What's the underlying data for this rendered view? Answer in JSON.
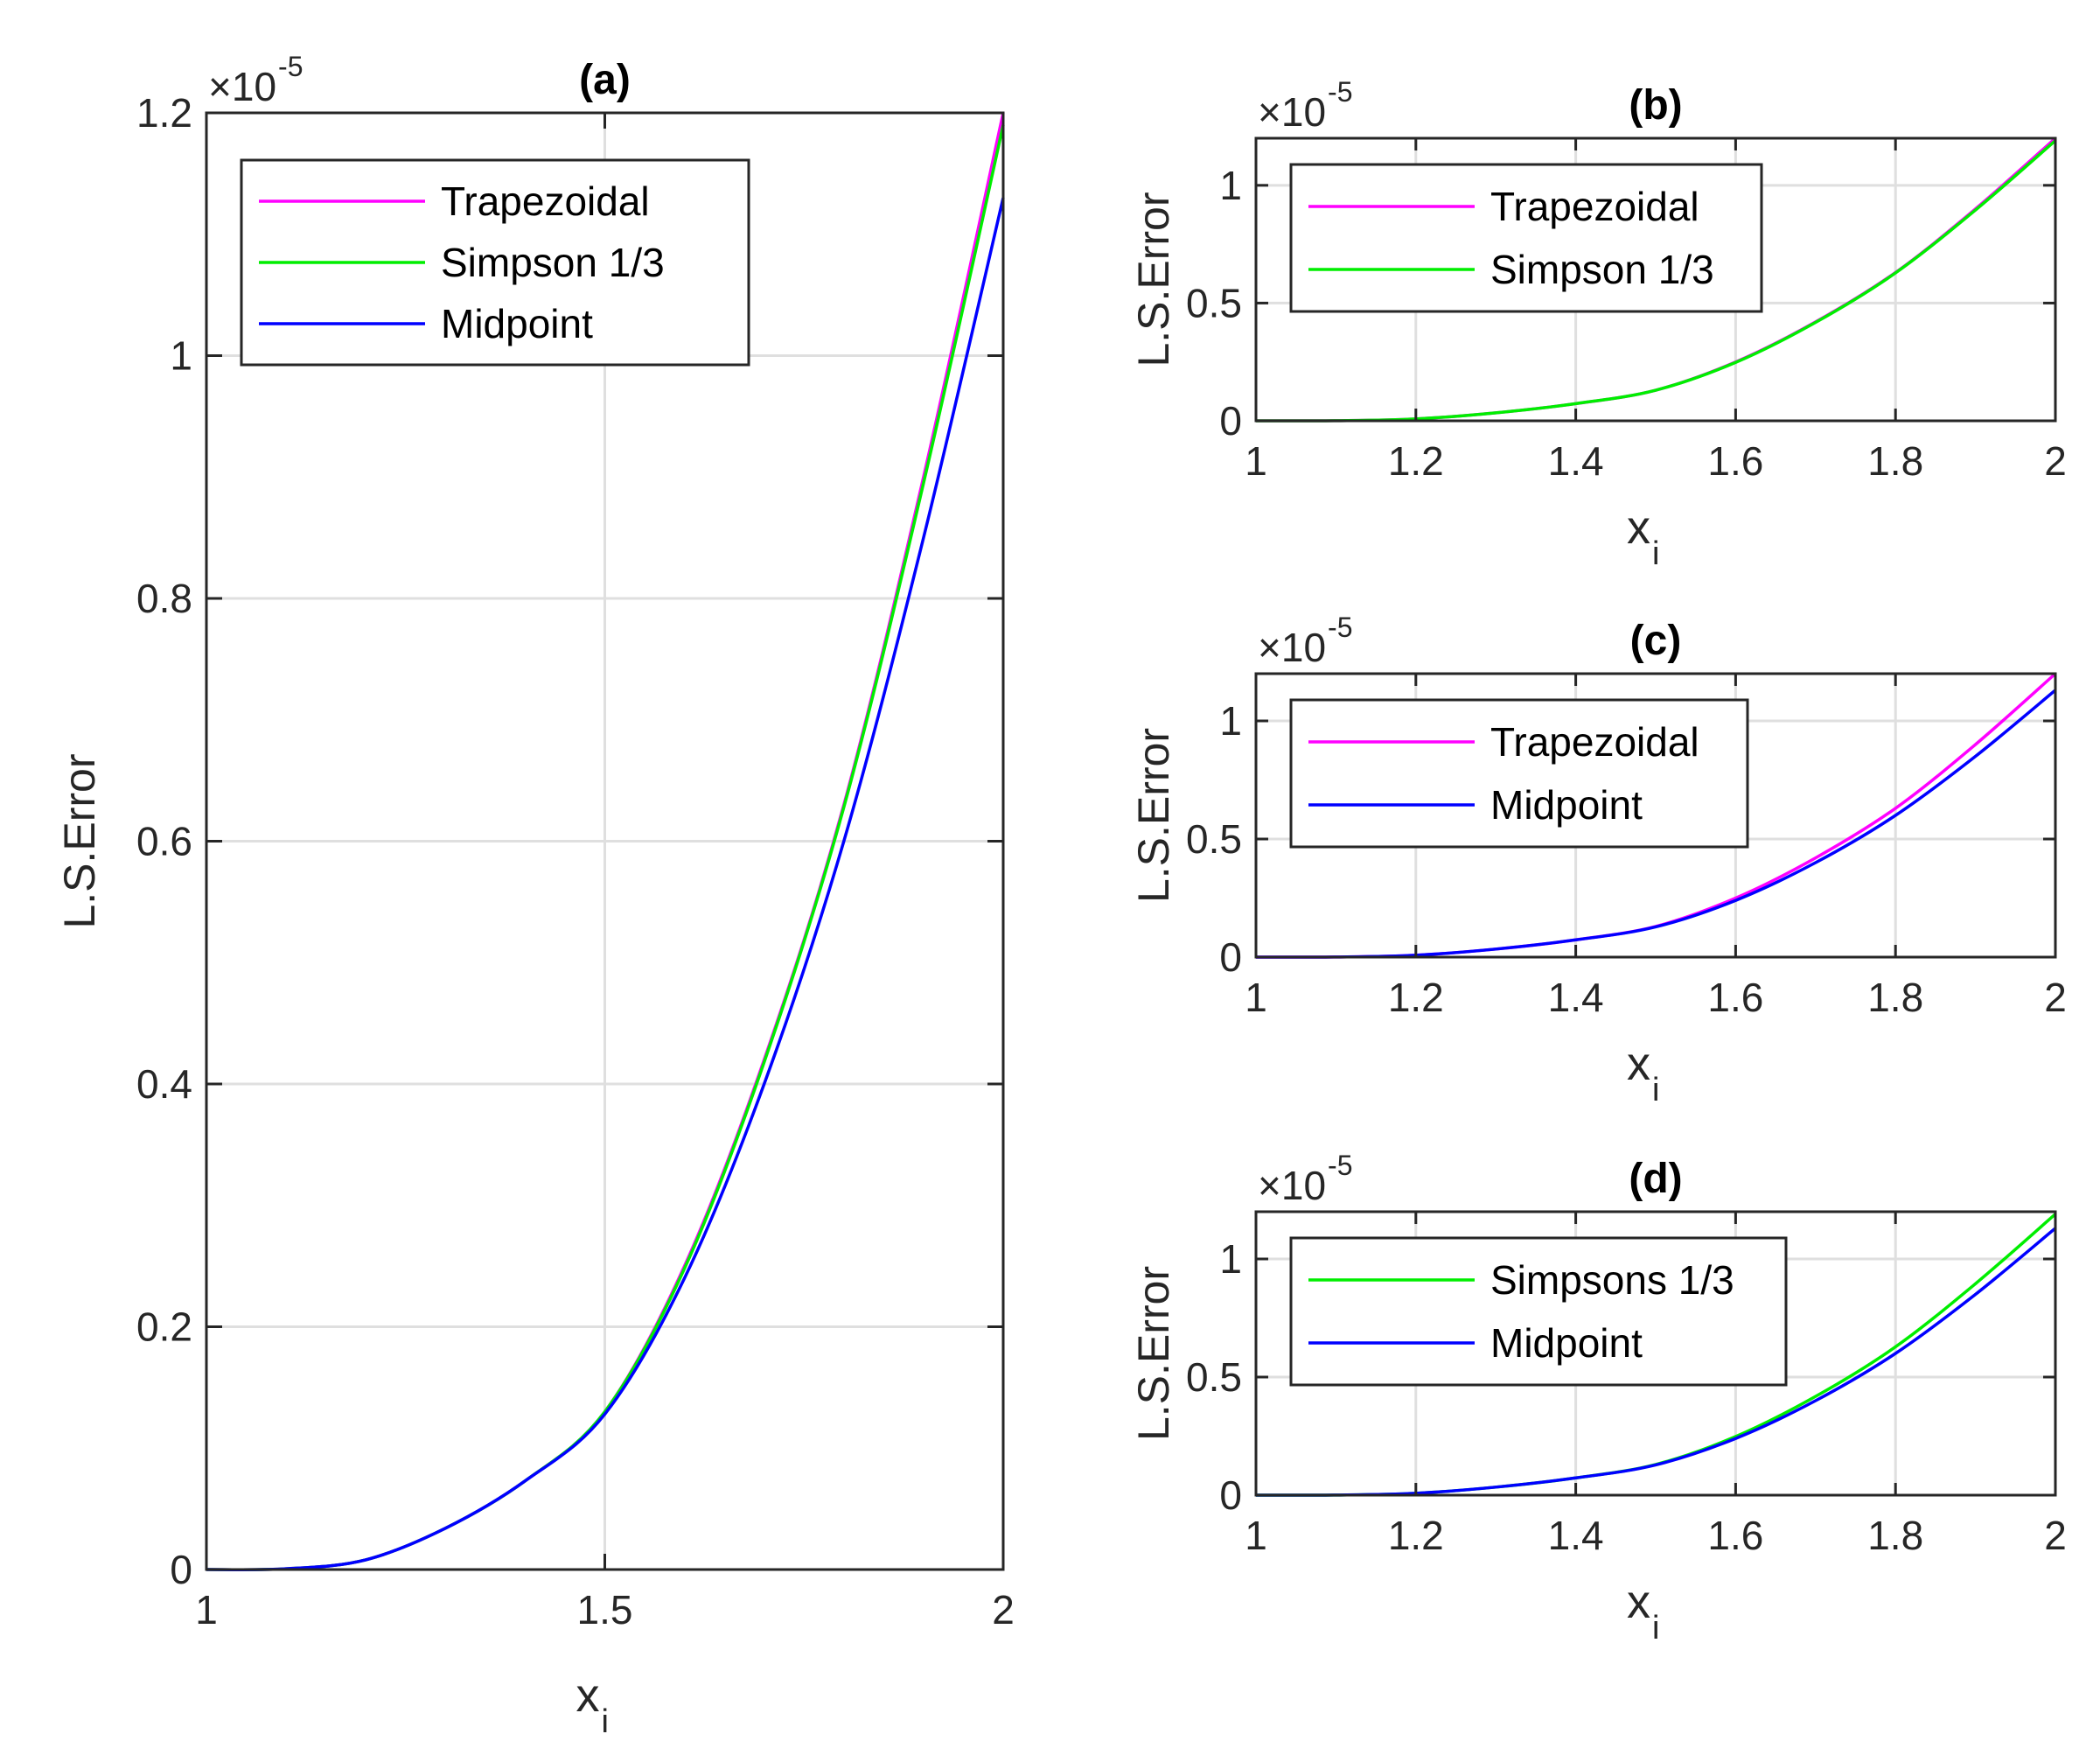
{
  "chart_data": [
    {
      "id": "a",
      "type": "line",
      "title": "(a)",
      "xlabel": "x",
      "xlabel_sub": "i",
      "ylabel": "L.S.Error",
      "y_multiplier": "×10",
      "y_multiplier_exp": "-5",
      "xlim": [
        1,
        2
      ],
      "ylim": [
        0,
        1.2
      ],
      "xticks": [
        1,
        1.5,
        2
      ],
      "xtick_labels": [
        "1",
        "1.5",
        "2"
      ],
      "yticks": [
        0,
        0.2,
        0.4,
        0.6,
        0.8,
        1,
        1.2
      ],
      "ytick_labels": [
        "0",
        "0.2",
        "0.4",
        "0.6",
        "0.8",
        "1",
        "1.2"
      ],
      "grid": true,
      "legend_position": "top-left",
      "series": [
        {
          "name": "Trapezoidal",
          "color": "#ff00ff",
          "x": [
            1,
            1.1,
            1.2,
            1.3,
            1.4,
            1.5,
            1.6,
            1.7,
            1.8,
            1.9,
            2
          ],
          "y": [
            0,
            0.0006,
            0.008,
            0.034,
            0.073,
            0.13,
            0.25,
            0.42,
            0.63,
            0.9,
            1.2
          ]
        },
        {
          "name": "Simpson 1/3",
          "color": "#00ee00",
          "x": [
            1,
            1.1,
            1.2,
            1.3,
            1.4,
            1.5,
            1.6,
            1.7,
            1.8,
            1.9,
            2
          ],
          "y": [
            0,
            0.0006,
            0.008,
            0.034,
            0.073,
            0.13,
            0.248,
            0.418,
            0.628,
            0.895,
            1.19
          ]
        },
        {
          "name": "Midpoint",
          "color": "#0000ff",
          "x": [
            1,
            1.1,
            1.2,
            1.3,
            1.4,
            1.5,
            1.6,
            1.7,
            1.8,
            1.9,
            2
          ],
          "y": [
            0,
            0.0006,
            0.008,
            0.034,
            0.073,
            0.128,
            0.24,
            0.4,
            0.6,
            0.85,
            1.13
          ]
        }
      ]
    },
    {
      "id": "b",
      "type": "line",
      "title": "(b)",
      "xlabel": "x",
      "xlabel_sub": "i",
      "ylabel": "L.S.Error",
      "y_multiplier": "×10",
      "y_multiplier_exp": "-5",
      "xlim": [
        1,
        2
      ],
      "ylim": [
        0,
        1.2
      ],
      "xticks": [
        1,
        1.2,
        1.4,
        1.6,
        1.8,
        2
      ],
      "xtick_labels": [
        "1",
        "1.2",
        "1.4",
        "1.6",
        "1.8",
        "2"
      ],
      "yticks": [
        0,
        0.5,
        1
      ],
      "ytick_labels": [
        "0",
        "0.5",
        "1"
      ],
      "grid": true,
      "legend_position": "top-left",
      "series": [
        {
          "name": "Trapezoidal",
          "color": "#ff00ff",
          "x": [
            1,
            1.1,
            1.2,
            1.3,
            1.4,
            1.5,
            1.6,
            1.7,
            1.8,
            1.9,
            2
          ],
          "y": [
            0,
            0.0006,
            0.008,
            0.034,
            0.073,
            0.13,
            0.25,
            0.42,
            0.63,
            0.9,
            1.2
          ]
        },
        {
          "name": "Simpson 1/3",
          "color": "#00ee00",
          "x": [
            1,
            1.1,
            1.2,
            1.3,
            1.4,
            1.5,
            1.6,
            1.7,
            1.8,
            1.9,
            2
          ],
          "y": [
            0,
            0.0006,
            0.008,
            0.034,
            0.073,
            0.13,
            0.248,
            0.418,
            0.628,
            0.895,
            1.19
          ]
        }
      ]
    },
    {
      "id": "c",
      "type": "line",
      "title": "(c)",
      "xlabel": "x",
      "xlabel_sub": "i",
      "ylabel": "L.S.Error",
      "y_multiplier": "×10",
      "y_multiplier_exp": "-5",
      "xlim": [
        1,
        2
      ],
      "ylim": [
        0,
        1.2
      ],
      "xticks": [
        1,
        1.2,
        1.4,
        1.6,
        1.8,
        2
      ],
      "xtick_labels": [
        "1",
        "1.2",
        "1.4",
        "1.6",
        "1.8",
        "2"
      ],
      "yticks": [
        0,
        0.5,
        1
      ],
      "ytick_labels": [
        "0",
        "0.5",
        "1"
      ],
      "grid": true,
      "legend_position": "top-left",
      "series": [
        {
          "name": "Trapezoidal",
          "color": "#ff00ff",
          "x": [
            1,
            1.1,
            1.2,
            1.3,
            1.4,
            1.5,
            1.6,
            1.7,
            1.8,
            1.9,
            2
          ],
          "y": [
            0,
            0.0006,
            0.008,
            0.034,
            0.073,
            0.13,
            0.25,
            0.42,
            0.63,
            0.9,
            1.2
          ]
        },
        {
          "name": "Midpoint",
          "color": "#0000ff",
          "x": [
            1,
            1.1,
            1.2,
            1.3,
            1.4,
            1.5,
            1.6,
            1.7,
            1.8,
            1.9,
            2
          ],
          "y": [
            0,
            0.0006,
            0.008,
            0.034,
            0.073,
            0.128,
            0.24,
            0.4,
            0.6,
            0.85,
            1.13
          ]
        }
      ]
    },
    {
      "id": "d",
      "type": "line",
      "title": "(d)",
      "xlabel": "x",
      "xlabel_sub": "i",
      "ylabel": "L.S.Error",
      "y_multiplier": "×10",
      "y_multiplier_exp": "-5",
      "xlim": [
        1,
        2
      ],
      "ylim": [
        0,
        1.2
      ],
      "xticks": [
        1,
        1.2,
        1.4,
        1.6,
        1.8,
        2
      ],
      "xtick_labels": [
        "1",
        "1.2",
        "1.4",
        "1.6",
        "1.8",
        "2"
      ],
      "yticks": [
        0,
        0.5,
        1
      ],
      "ytick_labels": [
        "0",
        "0.5",
        "1"
      ],
      "grid": true,
      "legend_position": "top-left",
      "series": [
        {
          "name": "Simpsons 1/3",
          "color": "#00ee00",
          "x": [
            1,
            1.1,
            1.2,
            1.3,
            1.4,
            1.5,
            1.6,
            1.7,
            1.8,
            1.9,
            2
          ],
          "y": [
            0,
            0.0006,
            0.008,
            0.034,
            0.073,
            0.13,
            0.248,
            0.418,
            0.628,
            0.895,
            1.19
          ]
        },
        {
          "name": "Midpoint",
          "color": "#0000ff",
          "x": [
            1,
            1.1,
            1.2,
            1.3,
            1.4,
            1.5,
            1.6,
            1.7,
            1.8,
            1.9,
            2
          ],
          "y": [
            0,
            0.0006,
            0.008,
            0.034,
            0.073,
            0.128,
            0.24,
            0.4,
            0.6,
            0.85,
            1.13
          ]
        }
      ]
    }
  ]
}
